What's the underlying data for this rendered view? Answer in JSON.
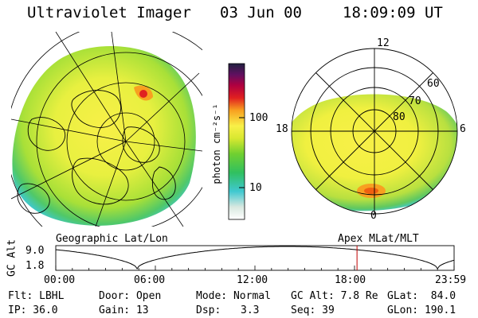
{
  "header": {
    "instrument": "Ultraviolet Imager",
    "date": "03 Jun 00",
    "time": "18:09:09 UT"
  },
  "colorbar": {
    "unit_label": "photon cm⁻²s⁻¹",
    "tick_100": "100",
    "tick_10": "10",
    "scale": "log",
    "colors": [
      "#ffffff",
      "#d8e8e0",
      "#40c8d0",
      "#30c060",
      "#70d030",
      "#d8e830",
      "#f8f048",
      "#f8a020",
      "#e02020",
      "#b00040",
      "#601060",
      "#202040"
    ]
  },
  "left_map": {
    "caption": "Geographic Lat/Lon"
  },
  "right_map": {
    "caption": "Apex MLat/MLT",
    "mlt_12": "12",
    "mlt_18": "18",
    "mlt_6": "6",
    "mlt_0": "0",
    "lat_60": "60",
    "lat_70": "70",
    "lat_80": "80"
  },
  "altitude_plot": {
    "ylabel": "GC Alt",
    "ytick_top": "9.0",
    "ytick_bottom": "1.8",
    "xticks": [
      "00:00",
      "06:00",
      "12:00",
      "18:00",
      "23:59"
    ],
    "current_time_hours": 18.15,
    "marker_color": "#c00000"
  },
  "status": {
    "flt": "Flt: LBHL",
    "door": "Door: Open",
    "mode": "Mode: Normal",
    "gc_alt": "GC Alt: 7.8 Re",
    "glat": "GLat:  84.0",
    "ip": "IP: 36.0",
    "gain": "Gain: 13",
    "dsp_label": "Dsp:",
    "dsp_value": "3.3",
    "seq": "Seq: 39",
    "glon": "GLon: 190.1"
  }
}
